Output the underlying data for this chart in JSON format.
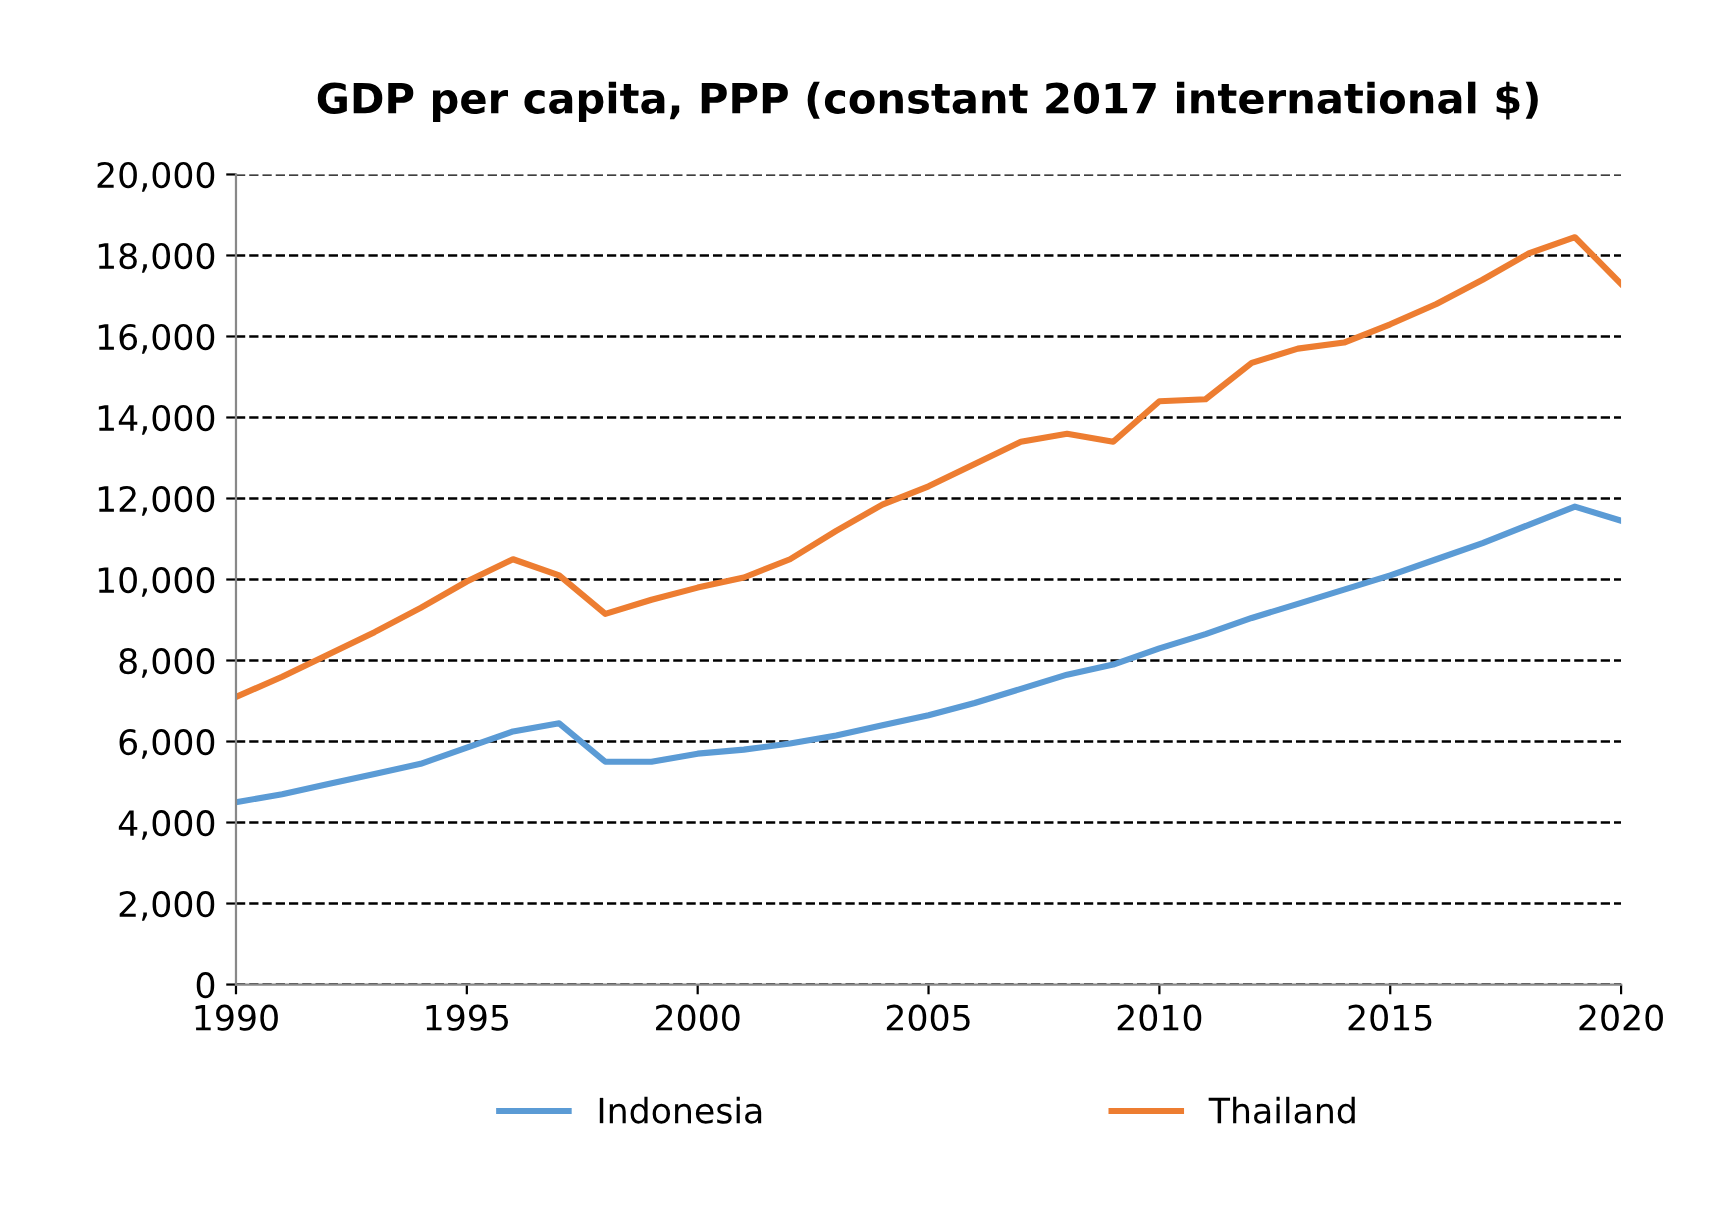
{
  "chart_data": {
    "type": "line",
    "title": "GDP per capita, PPP (constant 2017 international $)",
    "x": [
      1990,
      1991,
      1992,
      1993,
      1994,
      1995,
      1996,
      1997,
      1998,
      1999,
      2000,
      2001,
      2002,
      2003,
      2004,
      2005,
      2006,
      2007,
      2008,
      2009,
      2010,
      2011,
      2012,
      2013,
      2014,
      2015,
      2016,
      2017,
      2018,
      2019,
      2020
    ],
    "series": [
      {
        "name": "Indonesia",
        "color": "#5b9bd5",
        "values": [
          4500,
          4700,
          4950,
          5200,
          5450,
          5850,
          6250,
          6450,
          5500,
          5500,
          5700,
          5800,
          5950,
          6150,
          6400,
          6650,
          6950,
          7300,
          7650,
          7900,
          8300,
          8650,
          9050,
          9400,
          9750,
          10100,
          10500,
          10900,
          11350,
          11800,
          11450
        ]
      },
      {
        "name": "Thailand",
        "color": "#ed7d31",
        "values": [
          7100,
          7600,
          8150,
          8700,
          9300,
          9950,
          10500,
          10100,
          9150,
          9500,
          9800,
          10050,
          10500,
          11200,
          11850,
          12300,
          12850,
          13400,
          13600,
          13400,
          14400,
          14450,
          15350,
          15700,
          15850,
          16300,
          16800,
          17400,
          18050,
          18450,
          17300
        ]
      }
    ],
    "xlim": [
      1990,
      2020
    ],
    "xticks": [
      1990,
      1995,
      2000,
      2005,
      2010,
      2015,
      2020
    ],
    "ylim": [
      0,
      20000
    ],
    "yticks": [
      {
        "value": 0,
        "label": "0"
      },
      {
        "value": 2000,
        "label": "2,000"
      },
      {
        "value": 4000,
        "label": "4,000"
      },
      {
        "value": 6000,
        "label": "6,000"
      },
      {
        "value": 8000,
        "label": "8,000"
      },
      {
        "value": 10000,
        "label": "10,000"
      },
      {
        "value": 12000,
        "label": "12,000"
      },
      {
        "value": 14000,
        "label": "14,000"
      },
      {
        "value": 16000,
        "label": "16,000"
      },
      {
        "value": 18000,
        "label": "18,000"
      },
      {
        "value": 20000,
        "label": "20,000"
      }
    ],
    "grid": "y",
    "legend": "bottom",
    "marker": "none",
    "line_style": "solid"
  }
}
